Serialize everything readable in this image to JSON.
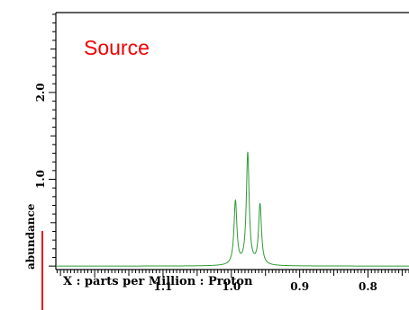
{
  "overlay_label": "Source",
  "colors": {
    "frame": "#000000",
    "trace": "#2e9a36",
    "marker": "#ee0000"
  },
  "chart_data": {
    "type": "line",
    "title": "",
    "xlabel": "X : parts per Million : Proton",
    "ylabel": "abundance",
    "x_reversed": true,
    "xlim": [
      1.2568,
      0.74
    ],
    "ylim": [
      -0.04,
      2.92
    ],
    "x_ticks": [
      {
        "value": 1.1,
        "label": "1.1"
      },
      {
        "value": 1.0,
        "label": "1.0"
      },
      {
        "value": 0.9,
        "label": "0.9"
      },
      {
        "value": 0.8,
        "label": "0.8"
      }
    ],
    "y_ticks": [
      {
        "value": 1.0,
        "label": "1.0"
      },
      {
        "value": 2.0,
        "label": "2.0"
      }
    ],
    "series": [
      {
        "peaks": [
          {
            "x": 0.994,
            "y": 0.74
          },
          {
            "x": 0.976,
            "y": 1.29
          },
          {
            "x": 0.958,
            "y": 0.7
          }
        ]
      }
    ]
  }
}
